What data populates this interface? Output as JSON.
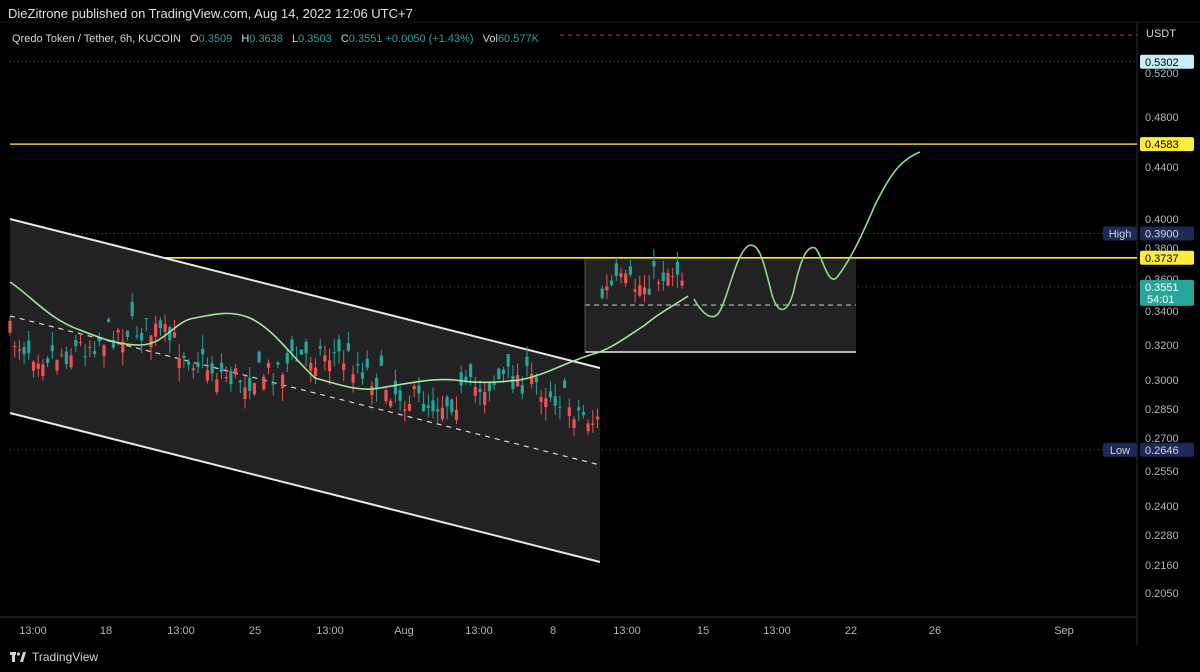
{
  "publisher_line": "DieZitrone published on TradingView.com, Aug 14, 2022 12:06 UTC+7",
  "legend": {
    "symbol": "Qredo Token / Tether, 6h, KUCOIN",
    "o_label": "O",
    "o_value": "0.3509",
    "h_label": "H",
    "h_value": "0.3638",
    "l_label": "L",
    "l_value": "0.3503",
    "c_label": "C",
    "c_value": "0.3551",
    "change": "+0.0050 (+1.43%)",
    "vol_label": "Vol",
    "vol_value": "60.577K"
  },
  "currency": "USDT",
  "brand": "TradingView",
  "chart_data": {
    "type": "candlestick",
    "timeframe": "6h",
    "ylim": [
      0.196,
      0.536
    ],
    "y_ticks": [
      "0.5200",
      "0.4800",
      "0.4400",
      "0.4000",
      "0.3800",
      "0.3600",
      "0.3400",
      "0.3200",
      "0.3000",
      "0.2850",
      "0.2700",
      "0.2550",
      "0.2400",
      "0.2280",
      "0.2160",
      "0.2050"
    ],
    "x_ticks": [
      "13:00",
      "18",
      "13:00",
      "25",
      "13:00",
      "Aug",
      "13:00",
      "8",
      "13:00",
      "15",
      "13:00",
      "22",
      "26",
      "Sep"
    ],
    "price_labels": [
      {
        "text": "0.5302",
        "value": 0.5302,
        "color": "#c9ecf5",
        "textColor": "#000000",
        "tag": ""
      },
      {
        "text": "0.4583",
        "value": 0.4583,
        "color": "#ffeb3b",
        "textColor": "#000000",
        "tag": ""
      },
      {
        "text": "0.3900",
        "value": 0.39,
        "color": "#1e2a55",
        "textColor": "#d1d4dc",
        "tag": "High"
      },
      {
        "text": "0.3737",
        "value": 0.3737,
        "color": "#ffeb3b",
        "textColor": "#000000",
        "tag": ""
      },
      {
        "text": "0.3551",
        "value": 0.3551,
        "color": "#26a69a",
        "textColor": "#ffffff",
        "tag": "",
        "sub": "54:01"
      },
      {
        "text": "0.2646",
        "value": 0.2646,
        "color": "#1e2a55",
        "textColor": "#d1d4dc",
        "tag": "Low"
      }
    ],
    "horizontal_lines": [
      {
        "value": 0.4583,
        "color": "#e8c845",
        "style": "solid"
      },
      {
        "value": 0.3737,
        "color": "#ffeb3b",
        "style": "solid"
      },
      {
        "value": 0.5302,
        "color": "#6b6b6b",
        "style": "dotted"
      },
      {
        "value": 0.39,
        "color": "#555555",
        "style": "dotted"
      },
      {
        "value": 0.3551,
        "color": "#555555",
        "style": "dotted"
      },
      {
        "value": 0.2646,
        "color": "#555555",
        "style": "dotted"
      }
    ],
    "colors": {
      "up": "#26a69a",
      "down": "#ef5350",
      "ma": "#a5e6a0",
      "projection": "#8fdb8a",
      "channel": "#e0e0e0"
    }
  }
}
